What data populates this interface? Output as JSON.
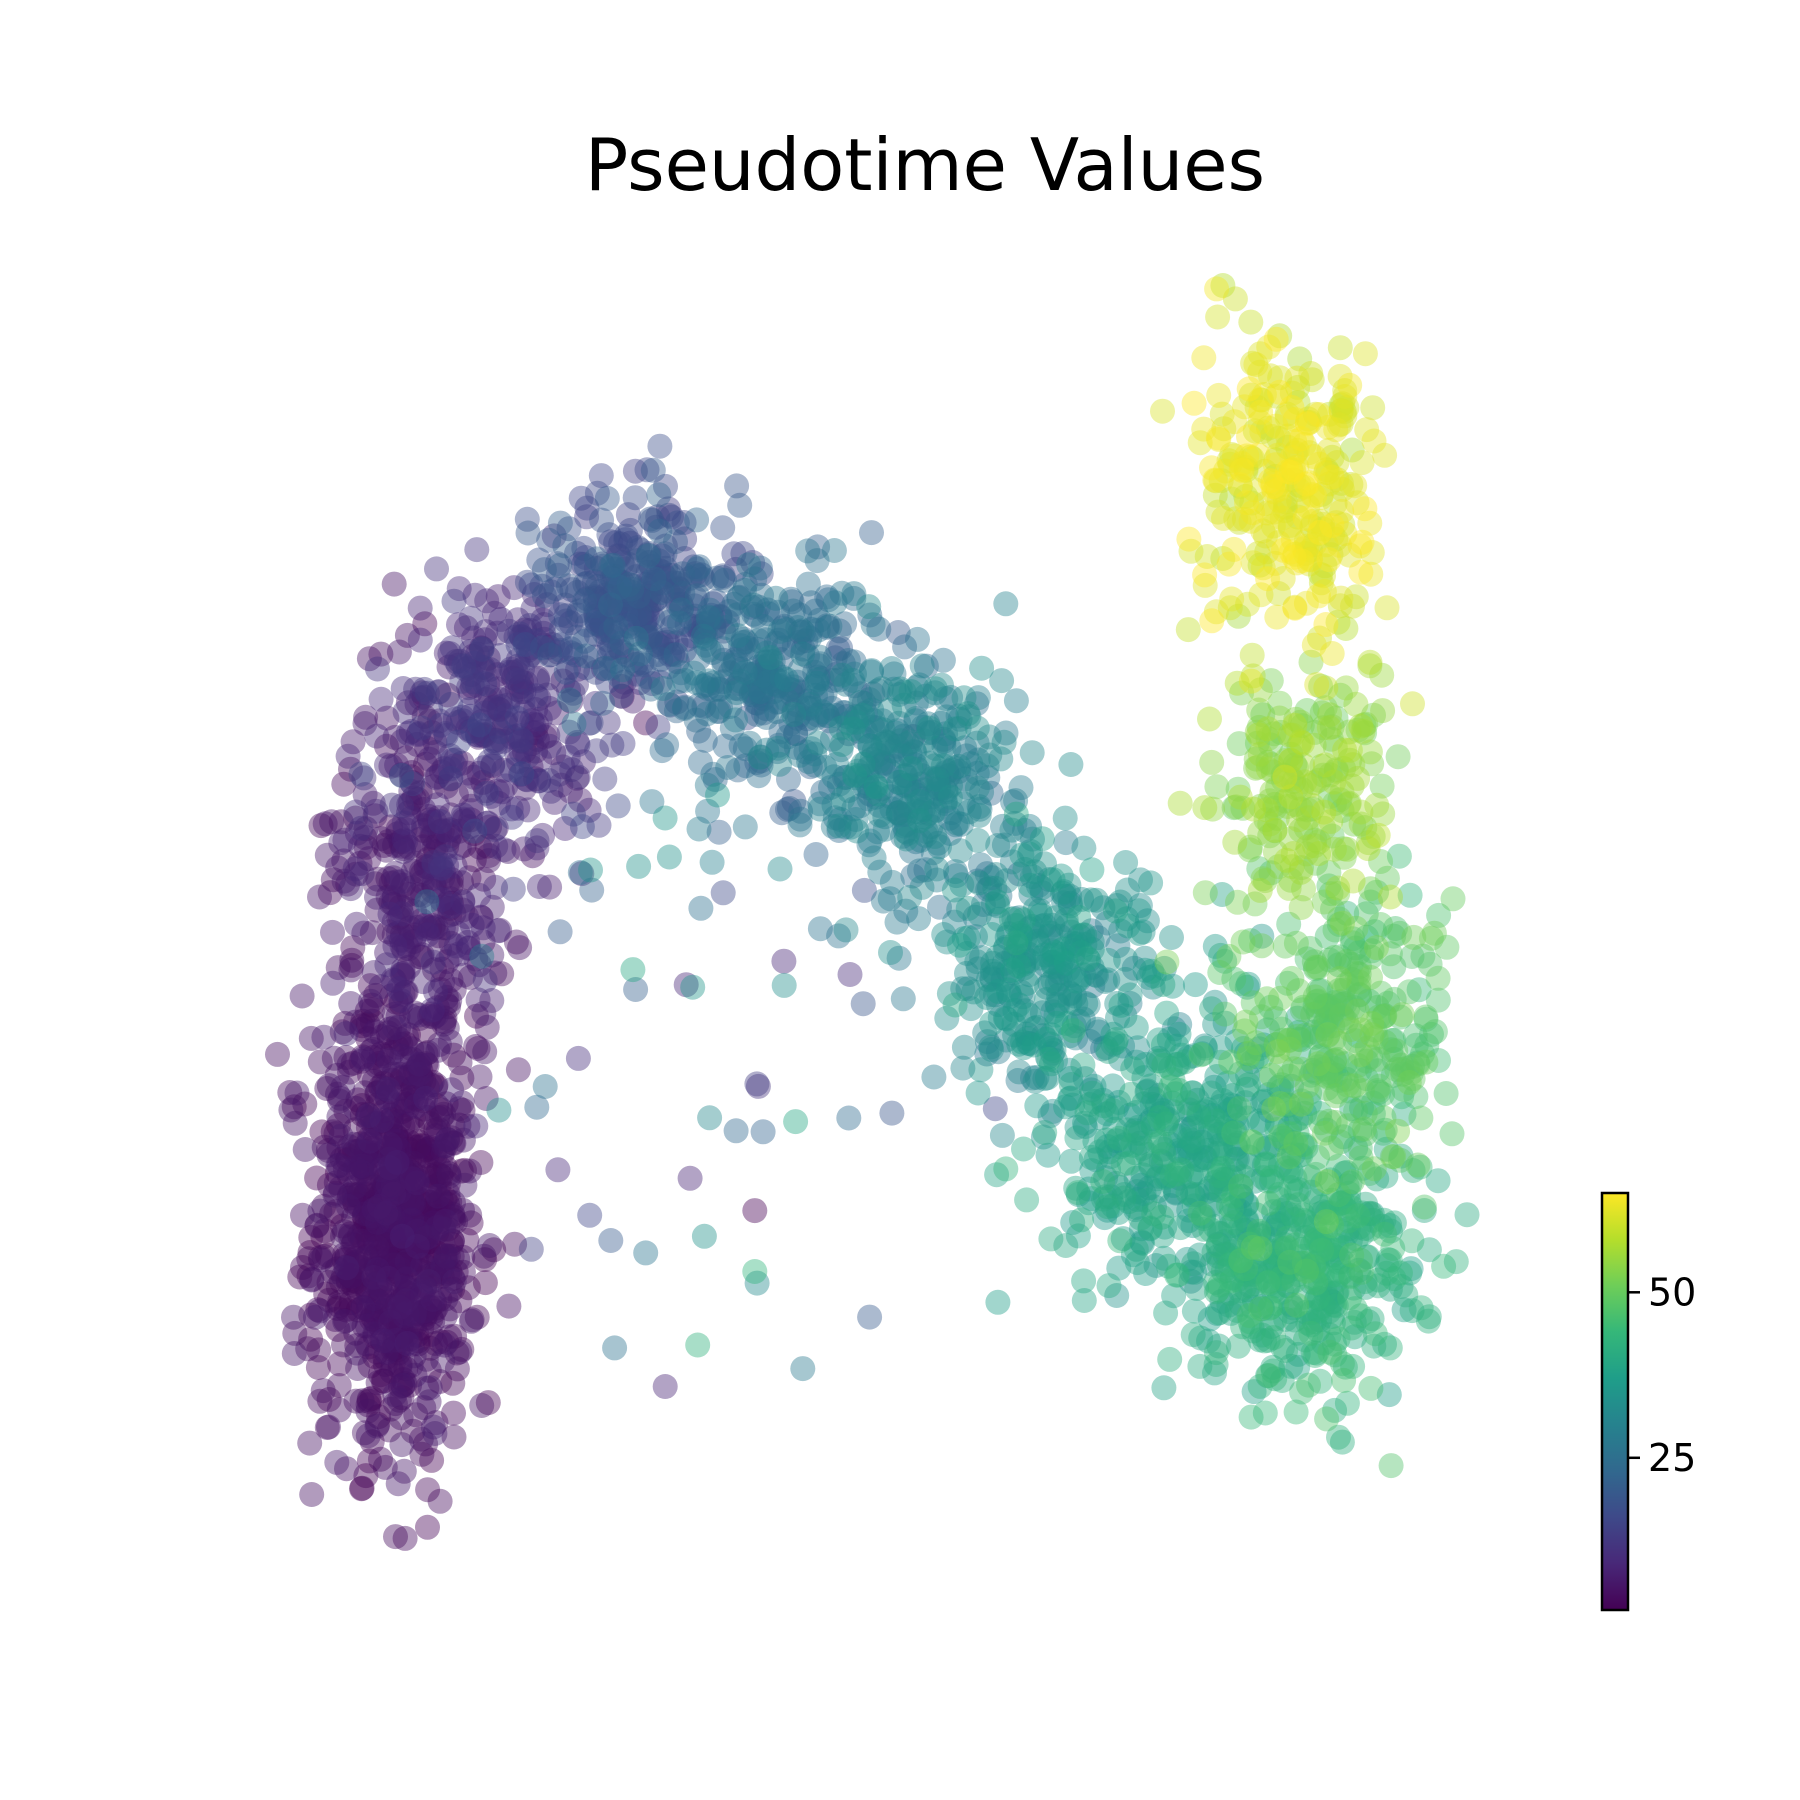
{
  "chart_data": {
    "type": "scatter",
    "title": "Pseudotime Values",
    "xlabel": "",
    "ylabel": "",
    "axes_visible": false,
    "grid": false,
    "legend": "none",
    "xlim": [
      0,
      100
    ],
    "ylim": [
      0,
      100
    ],
    "color_scale": {
      "name": "viridis",
      "colormap": [
        "#440154",
        "#482878",
        "#3e4989",
        "#31688e",
        "#26828e",
        "#1f9e89",
        "#35b779",
        "#6ece58",
        "#b5de2b",
        "#fde725"
      ],
      "range": [
        2,
        65
      ],
      "ticks": [
        25,
        50
      ],
      "tick_labels": [
        "25",
        "50"
      ],
      "placement": "right"
    },
    "series": [
      {
        "generated_from_clusters": true,
        "clusters": [
          {
            "cx": 9,
            "cy": 25,
            "sx": 3.2,
            "sy": 9,
            "n": 900,
            "value": 4,
            "vspread": 1.5
          },
          {
            "cx": 11,
            "cy": 52,
            "sx": 3.5,
            "sy": 7,
            "n": 350,
            "value": 6,
            "vspread": 2
          },
          {
            "cx": 18,
            "cy": 66,
            "sx": 4.5,
            "sy": 5,
            "n": 300,
            "value": 10,
            "vspread": 2.5
          },
          {
            "cx": 28,
            "cy": 74,
            "sx": 4,
            "sy": 4,
            "n": 300,
            "value": 17,
            "vspread": 2.5
          },
          {
            "cx": 38,
            "cy": 68,
            "sx": 4.5,
            "sy": 4,
            "n": 300,
            "value": 24,
            "vspread": 2.5
          },
          {
            "cx": 50,
            "cy": 60,
            "sx": 4.5,
            "sy": 4.5,
            "n": 320,
            "value": 29,
            "vspread": 2.5
          },
          {
            "cx": 60,
            "cy": 45,
            "sx": 4,
            "sy": 5,
            "n": 300,
            "value": 33,
            "vspread": 2.5
          },
          {
            "cx": 70,
            "cy": 31,
            "sx": 5,
            "sy": 6,
            "n": 400,
            "value": 38,
            "vspread": 2.5
          },
          {
            "cx": 80,
            "cy": 22,
            "sx": 4.5,
            "sy": 5,
            "n": 400,
            "value": 42,
            "vspread": 2.5
          },
          {
            "cx": 83,
            "cy": 40,
            "sx": 4,
            "sy": 6,
            "n": 300,
            "value": 48,
            "vspread": 2.5
          },
          {
            "cx": 80,
            "cy": 60,
            "sx": 3.5,
            "sy": 5,
            "n": 200,
            "value": 54,
            "vspread": 2.5
          },
          {
            "cx": 79,
            "cy": 83,
            "sx": 3.5,
            "sy": 6,
            "n": 280,
            "value": 62,
            "vspread": 2
          },
          {
            "cx": 30,
            "cy": 40,
            "sx": 12,
            "sy": 12,
            "n": 60,
            "value": 20,
            "vspread": 10
          }
        ]
      }
    ]
  }
}
